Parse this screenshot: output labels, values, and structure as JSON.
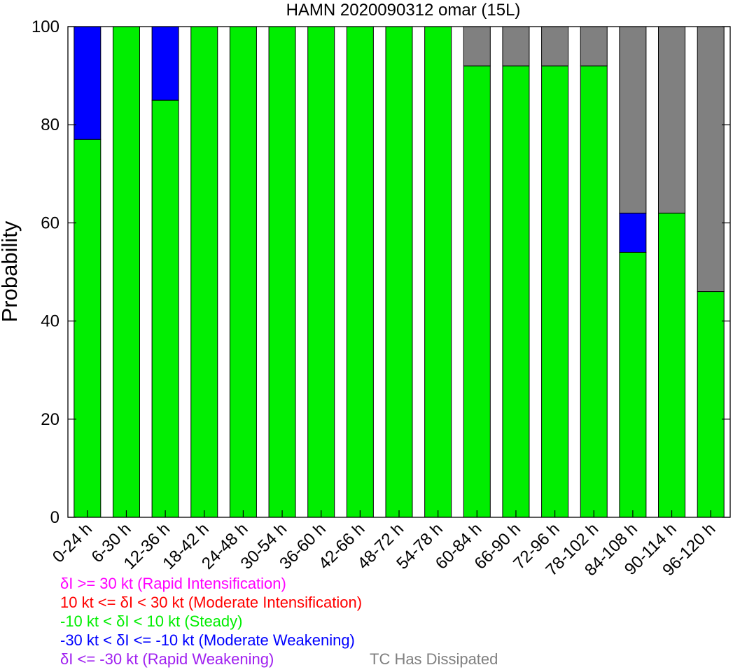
{
  "chart_data": {
    "type": "bar",
    "stacked": true,
    "title": "HAMN 2020090312 omar (15L)",
    "xlabel": "",
    "ylabel": "Probability",
    "ylim": [
      0,
      100
    ],
    "yticks": [
      0,
      20,
      40,
      60,
      80,
      100
    ],
    "categories": [
      "0-24 h",
      "6-30 h",
      "12-36 h",
      "18-42 h",
      "24-48 h",
      "30-54 h",
      "36-60 h",
      "42-66 h",
      "48-72 h",
      "54-78 h",
      "60-84 h",
      "66-90 h",
      "72-96 h",
      "78-102 h",
      "84-108 h",
      "90-114 h",
      "96-120 h"
    ],
    "series": [
      {
        "name": "Rapid Intensification",
        "color": "#ff00ff",
        "values": [
          0,
          0,
          0,
          0,
          0,
          0,
          0,
          0,
          0,
          0,
          0,
          0,
          0,
          0,
          0,
          0,
          0
        ]
      },
      {
        "name": "Moderate Intensification",
        "color": "#ff0000",
        "values": [
          0,
          0,
          0,
          0,
          0,
          0,
          0,
          0,
          0,
          0,
          0,
          0,
          0,
          0,
          0,
          0,
          0
        ]
      },
      {
        "name": "Steady",
        "color": "#00ee00",
        "values": [
          77,
          100,
          85,
          100,
          100,
          100,
          100,
          100,
          100,
          100,
          92,
          92,
          92,
          92,
          54,
          62,
          46
        ]
      },
      {
        "name": "Moderate Weakening",
        "color": "#0000ff",
        "values": [
          23,
          0,
          15,
          0,
          0,
          0,
          0,
          0,
          0,
          0,
          0,
          0,
          0,
          0,
          8,
          0,
          0
        ]
      },
      {
        "name": "Rapid Weakening",
        "color": "#a020f0",
        "values": [
          0,
          0,
          0,
          0,
          0,
          0,
          0,
          0,
          0,
          0,
          0,
          0,
          0,
          0,
          0,
          0,
          0
        ]
      },
      {
        "name": "TC Has Dissipated",
        "color": "#808080",
        "values": [
          0,
          0,
          0,
          0,
          0,
          0,
          0,
          0,
          0,
          0,
          8,
          8,
          8,
          8,
          38,
          38,
          54
        ]
      }
    ],
    "stack_order": [
      "Steady",
      "Moderate Weakening",
      "TC Has Dissipated"
    ],
    "legend": [
      {
        "text": "δI >= 30 kt (Rapid Intensification)",
        "color": "#ff00ff"
      },
      {
        "text": "10 kt <= δI < 30 kt (Moderate Intensification)",
        "color": "#ff0000"
      },
      {
        "text": "-10 kt < δI < 10 kt (Steady)",
        "color": "#00ee00"
      },
      {
        "text": "-30 kt < δI <= -10 kt (Moderate Weakening)",
        "color": "#0000ff"
      },
      {
        "text": "δI <= -30 kt (Rapid Weakening)",
        "color": "#a020f0"
      },
      {
        "text": "TC Has Dissipated",
        "color": "#808080"
      }
    ]
  }
}
